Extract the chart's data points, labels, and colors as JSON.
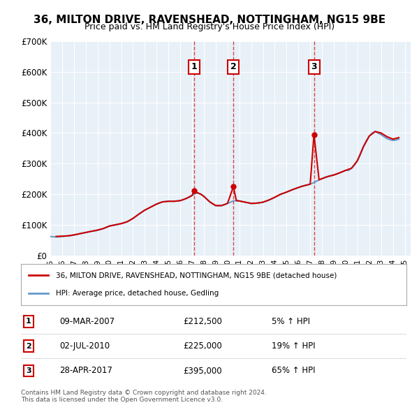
{
  "title": "36, MILTON DRIVE, RAVENSHEAD, NOTTINGHAM, NG15 9BE",
  "subtitle": "Price paid vs. HM Land Registry's House Price Index (HPI)",
  "xlabel": "",
  "ylabel": "",
  "ylim": [
    0,
    700000
  ],
  "yticks": [
    0,
    100000,
    200000,
    300000,
    400000,
    500000,
    600000,
    700000
  ],
  "ytick_labels": [
    "£0",
    "£100K",
    "£200K",
    "£300K",
    "£400K",
    "£500K",
    "£600K",
    "£700K"
  ],
  "xlim_start": 1995.0,
  "xlim_end": 2025.5,
  "background_color": "#ffffff",
  "plot_bg_color": "#e8f0f8",
  "grid_color": "#ffffff",
  "red_line_color": "#cc0000",
  "blue_line_color": "#6699cc",
  "transaction_color": "#cc0000",
  "marker_box_color": "#cc0000",
  "transactions": [
    {
      "year": 2007.19,
      "price": 212500,
      "label": "1",
      "date": "09-MAR-2007",
      "price_str": "£212,500",
      "hpi_pct": "5%",
      "direction": "↑"
    },
    {
      "year": 2010.5,
      "price": 225000,
      "label": "2",
      "date": "02-JUL-2010",
      "price_str": "£225,000",
      "hpi_pct": "19%",
      "direction": "↑"
    },
    {
      "year": 2017.32,
      "price": 395000,
      "label": "3",
      "date": "28-APR-2017",
      "price_str": "£395,000",
      "hpi_pct": "65%",
      "direction": "↑"
    }
  ],
  "legend_entries": [
    {
      "label": "36, MILTON DRIVE, RAVENSHEAD, NOTTINGHAM, NG15 9BE (detached house)",
      "color": "#cc0000",
      "lw": 2.0
    },
    {
      "label": "HPI: Average price, detached house, Gedling",
      "color": "#6699cc",
      "lw": 2.0
    }
  ],
  "footnote": "Contains HM Land Registry data © Crown copyright and database right 2024.\nThis data is licensed under the Open Government Licence v3.0.",
  "hpi_data_x": [
    1995.0,
    1995.25,
    1995.5,
    1995.75,
    1996.0,
    1996.25,
    1996.5,
    1996.75,
    1997.0,
    1997.25,
    1997.5,
    1997.75,
    1998.0,
    1998.25,
    1998.5,
    1998.75,
    1999.0,
    1999.25,
    1999.5,
    1999.75,
    2000.0,
    2000.25,
    2000.5,
    2000.75,
    2001.0,
    2001.25,
    2001.5,
    2001.75,
    2002.0,
    2002.25,
    2002.5,
    2002.75,
    2003.0,
    2003.25,
    2003.5,
    2003.75,
    2004.0,
    2004.25,
    2004.5,
    2004.75,
    2005.0,
    2005.25,
    2005.5,
    2005.75,
    2006.0,
    2006.25,
    2006.5,
    2006.75,
    2007.0,
    2007.25,
    2007.5,
    2007.75,
    2008.0,
    2008.25,
    2008.5,
    2008.75,
    2009.0,
    2009.25,
    2009.5,
    2009.75,
    2010.0,
    2010.25,
    2010.5,
    2010.75,
    2011.0,
    2011.25,
    2011.5,
    2011.75,
    2012.0,
    2012.25,
    2012.5,
    2012.75,
    2013.0,
    2013.25,
    2013.5,
    2013.75,
    2014.0,
    2014.25,
    2014.5,
    2014.75,
    2015.0,
    2015.25,
    2015.5,
    2015.75,
    2016.0,
    2016.25,
    2016.5,
    2016.75,
    2017.0,
    2017.25,
    2017.5,
    2017.75,
    2018.0,
    2018.25,
    2018.5,
    2018.75,
    2019.0,
    2019.25,
    2019.5,
    2019.75,
    2020.0,
    2020.25,
    2020.5,
    2020.75,
    2021.0,
    2021.25,
    2021.5,
    2021.75,
    2022.0,
    2022.25,
    2022.5,
    2022.75,
    2023.0,
    2023.25,
    2023.5,
    2023.75,
    2024.0,
    2024.25,
    2024.5
  ],
  "hpi_data_y": [
    62000,
    61000,
    60500,
    61000,
    62000,
    63000,
    64000,
    65000,
    67000,
    69000,
    71000,
    73000,
    75000,
    77000,
    79000,
    80000,
    82000,
    85000,
    88000,
    92000,
    96000,
    98000,
    100000,
    102000,
    104000,
    107000,
    110000,
    115000,
    121000,
    128000,
    135000,
    142000,
    148000,
    153000,
    158000,
    163000,
    168000,
    172000,
    175000,
    176000,
    177000,
    177000,
    177000,
    178000,
    179000,
    182000,
    186000,
    190000,
    196000,
    202000,
    204000,
    200000,
    193000,
    184000,
    175000,
    168000,
    163000,
    162000,
    163000,
    166000,
    170000,
    174000,
    178000,
    179000,
    178000,
    176000,
    174000,
    172000,
    170000,
    170000,
    171000,
    172000,
    174000,
    177000,
    181000,
    185000,
    190000,
    195000,
    200000,
    203000,
    207000,
    211000,
    215000,
    218000,
    222000,
    226000,
    228000,
    230000,
    233000,
    237000,
    242000,
    247000,
    251000,
    255000,
    258000,
    260000,
    263000,
    266000,
    270000,
    274000,
    278000,
    278000,
    285000,
    295000,
    310000,
    330000,
    355000,
    375000,
    390000,
    400000,
    405000,
    400000,
    395000,
    388000,
    382000,
    378000,
    376000,
    377000,
    380000
  ],
  "price_paid_x": [
    1995.5,
    1996.0,
    1996.5,
    1997.0,
    1997.5,
    1998.0,
    1998.5,
    1999.0,
    1999.5,
    2000.0,
    2000.5,
    2001.0,
    2001.5,
    2002.0,
    2002.5,
    2003.0,
    2003.5,
    2004.0,
    2004.5,
    2005.0,
    2005.5,
    2006.0,
    2006.5,
    2007.0,
    2007.19,
    2007.5,
    2007.75,
    2008.0,
    2008.5,
    2009.0,
    2009.5,
    2010.0,
    2010.5,
    2010.75,
    2011.0,
    2011.5,
    2012.0,
    2012.5,
    2013.0,
    2013.5,
    2014.0,
    2014.5,
    2015.0,
    2015.5,
    2016.0,
    2016.5,
    2017.0,
    2017.32,
    2017.75,
    2018.0,
    2018.5,
    2019.0,
    2019.5,
    2020.0,
    2020.5,
    2021.0,
    2021.5,
    2022.0,
    2022.5,
    2023.0,
    2023.5,
    2024.0,
    2024.5
  ],
  "price_paid_y": [
    62000,
    63000,
    64000,
    67000,
    71000,
    75000,
    79000,
    83000,
    88000,
    96000,
    100000,
    104000,
    110000,
    121000,
    135000,
    148000,
    158000,
    168000,
    175000,
    177000,
    177000,
    179000,
    186000,
    196000,
    212500,
    204000,
    200000,
    193000,
    175000,
    163000,
    163000,
    170000,
    225000,
    179000,
    178000,
    174000,
    170000,
    171000,
    174000,
    181000,
    190000,
    200000,
    207000,
    215000,
    222000,
    228000,
    233000,
    395000,
    247000,
    251000,
    258000,
    263000,
    270000,
    278000,
    285000,
    310000,
    355000,
    390000,
    405000,
    400000,
    388000,
    380000,
    385000
  ]
}
